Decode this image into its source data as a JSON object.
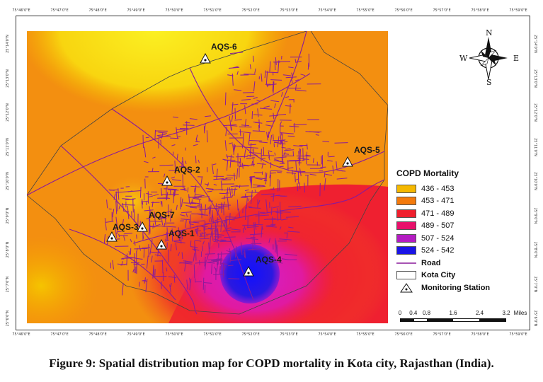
{
  "map": {
    "top_ticks": [
      "75°46'0\"E",
      "75°47'0\"E",
      "75°48'0\"E",
      "75°49'0\"E",
      "75°50'0\"E",
      "75°51'0\"E",
      "75°52'0\"E",
      "75°53'0\"E",
      "75°54'0\"E",
      "75°55'0\"E",
      "75°56'0\"E",
      "75°57'0\"E",
      "75°58'0\"E",
      "75°59'0\"E"
    ],
    "bottom_ticks": [
      "75°46'0\"E",
      "75°47'0\"E",
      "75°48'0\"E",
      "75°49'0\"E",
      "75°50'0\"E",
      "75°51'0\"E",
      "75°52'0\"E",
      "75°53'0\"E",
      "75°54'0\"E",
      "75°55'0\"E",
      "75°56'0\"E",
      "75°57'0\"E",
      "75°58'0\"E",
      "75°59'0\"E"
    ],
    "left_ticks": [
      "25°14'0\"N",
      "25°13'0\"N",
      "25°12'0\"N",
      "25°11'0\"N",
      "25°10'0\"N",
      "25°9'0\"N",
      "25°8'0\"N",
      "25°7'0\"N",
      "25°6'0\"N"
    ],
    "right_ticks": [
      "25°14'0\"N",
      "25°13'0\"N",
      "25°12'0\"N",
      "25°11'0\"N",
      "25°10'0\"N",
      "25°9'0\"N",
      "25°8'0\"N",
      "25°7'0\"N",
      "25°6'0\"N"
    ],
    "stations": [
      {
        "id": "AQS-6",
        "label": "AQS-6"
      },
      {
        "id": "AQS-5",
        "label": "AQS-5"
      },
      {
        "id": "AQS-2",
        "label": "AQS-2"
      },
      {
        "id": "AQS-7",
        "label": "AQS-7"
      },
      {
        "id": "AQS-3",
        "label": "AQS-3"
      },
      {
        "id": "AQS-1",
        "label": "AQS-1"
      },
      {
        "id": "AQS-4",
        "label": "AQS-4"
      }
    ]
  },
  "legend": {
    "title": "COPD Mortality",
    "classes": [
      {
        "label": "436 - 453",
        "color": "#f5b800"
      },
      {
        "label": "453 - 471",
        "color": "#f47a0c"
      },
      {
        "label": "471 - 489",
        "color": "#ef1f2d"
      },
      {
        "label": "489 - 507",
        "color": "#e8106b"
      },
      {
        "label": "507 - 524",
        "color": "#b41cc2"
      },
      {
        "label": "524 - 542",
        "color": "#1a14e6"
      }
    ],
    "road_label": "Road",
    "road_color": "#8a1a9a",
    "city_label": "Kota City",
    "station_label": "Monitoring Station"
  },
  "compass": {
    "n": "N",
    "s": "S",
    "e": "E",
    "w": "W"
  },
  "scale": {
    "ticks": [
      "0",
      "0.4",
      "0.8",
      "1.6",
      "2.4",
      "3.2"
    ],
    "unit": "Miles"
  },
  "caption": "Figure 9: Spatial distribution map for COPD mortality in Kota city, Rajasthan (India)."
}
